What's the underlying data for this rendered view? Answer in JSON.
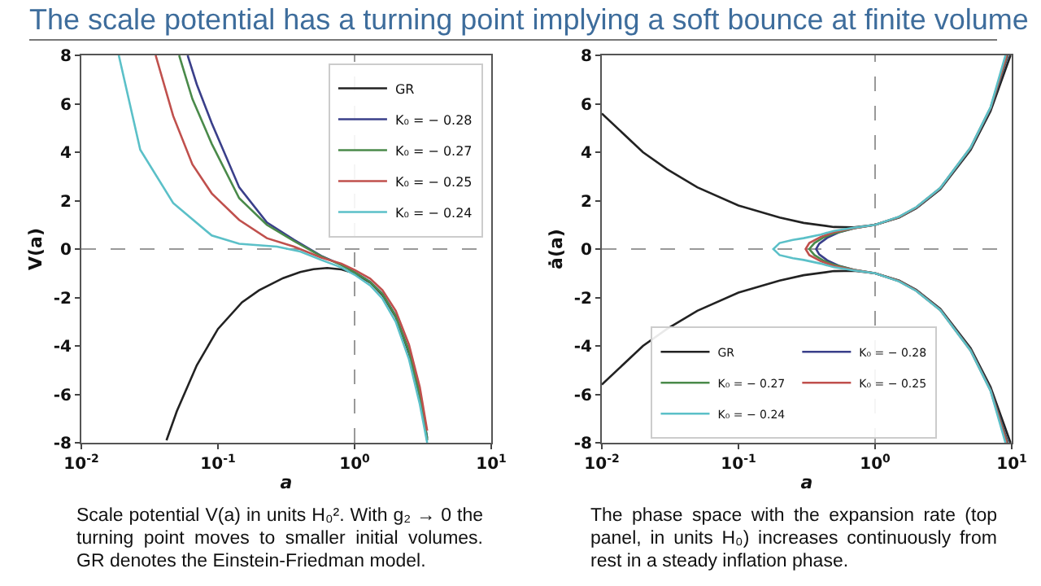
{
  "chart_data": [
    {
      "type": "line",
      "title": "The scale potential has a turning point implying a soft bounce at finite volume",
      "xlabel": "a",
      "ylabel": "V(a)",
      "log": "x",
      "xlim": [
        0.01,
        10
      ],
      "ylim": [
        -8,
        8
      ],
      "xticks": [
        {
          "value": 0.01,
          "label": "10$^{-2}$"
        },
        {
          "value": 0.1,
          "label": "10$^{-1}$"
        },
        {
          "value": 1,
          "label": "10$^{0}$"
        },
        {
          "value": 10,
          "label": "10$^{1}$"
        }
      ],
      "yticks": [
        -8,
        -6,
        -4,
        -2,
        0,
        2,
        4,
        6,
        8
      ],
      "grid": false,
      "legend": "top right",
      "ref_lines": [
        {
          "axis": "x",
          "value": 1,
          "color": "#999999",
          "line_style": "dashed"
        },
        {
          "axis": "y",
          "value": 0,
          "color": "#999999",
          "line_style": "dashed"
        }
      ],
      "annotations": [
        "Scale potential V(a) in units H₀². With g₂ → 0 the turning point moves to smaller initial volumes. GR denotes the Einstein-Friedman model."
      ],
      "series": [
        {
          "name": "GR",
          "color": "#222222",
          "x": [
            0.042,
            0.05,
            0.07,
            0.1,
            0.15,
            0.2,
            0.3,
            0.4,
            0.5,
            0.63,
            0.8,
            1,
            1.3,
            1.6,
            2,
            2.5,
            3,
            3.4
          ],
          "values": [
            -7.9,
            -6.7,
            -4.8,
            -3.3,
            -2.2,
            -1.7,
            -1.2,
            -0.95,
            -0.83,
            -0.78,
            -0.84,
            -1.0,
            -1.38,
            -1.9,
            -2.8,
            -4.3,
            -6.1,
            -7.9
          ]
        },
        {
          "name": "K₀ = − 0.28",
          "color": "#3a3f8a",
          "x": [
            0.06,
            0.07,
            0.09,
            0.143,
            0.228,
            0.36,
            0.57,
            0.8,
            1,
            1.3,
            1.6,
            2,
            2.5,
            3,
            3.4
          ],
          "values": [
            8,
            6.8,
            5.2,
            2.55,
            1.1,
            0.38,
            -0.28,
            -0.65,
            -0.95,
            -1.35,
            -1.85,
            -2.75,
            -4.2,
            -6.0,
            -7.8
          ]
        },
        {
          "name": "K₀ = − 0.27",
          "color": "#4a8a4a",
          "x": [
            0.052,
            0.065,
            0.09,
            0.143,
            0.228,
            0.36,
            0.57,
            0.8,
            1,
            1.3,
            1.6,
            2,
            2.5,
            3,
            3.4
          ],
          "values": [
            8,
            6.2,
            4.35,
            2.1,
            1.0,
            0.33,
            -0.3,
            -0.66,
            -0.96,
            -1.36,
            -1.86,
            -2.77,
            -4.22,
            -6.02,
            -7.85
          ]
        },
        {
          "name": "K₀ = − 0.25",
          "color": "#c0504d",
          "x": [
            0.035,
            0.047,
            0.065,
            0.09,
            0.143,
            0.228,
            0.36,
            0.57,
            0.8,
            1,
            1.3,
            1.6,
            2,
            2.5,
            3,
            3.4
          ],
          "values": [
            8,
            5.5,
            3.5,
            2.3,
            1.2,
            0.45,
            0.1,
            -0.35,
            -0.6,
            -0.86,
            -1.22,
            -1.7,
            -2.55,
            -3.95,
            -5.7,
            -7.5
          ]
        },
        {
          "name": "K₀ = − 0.24",
          "color": "#5bc0c8",
          "x": [
            0.0188,
            0.027,
            0.047,
            0.09,
            0.143,
            0.27,
            0.4,
            0.57,
            0.8,
            1,
            1.3,
            1.6,
            2,
            2.5,
            3,
            3.4
          ],
          "values": [
            8,
            4.1,
            1.9,
            0.56,
            0.22,
            0.1,
            -0.1,
            -0.45,
            -0.76,
            -1.06,
            -1.5,
            -2.05,
            -3.0,
            -4.55,
            -6.4,
            -8.0
          ]
        }
      ]
    },
    {
      "type": "line",
      "xlabel": "a",
      "ylabel": "ȧ(a)",
      "log": "x",
      "xlim": [
        0.01,
        10
      ],
      "ylim": [
        -8,
        8
      ],
      "xticks": [
        {
          "value": 0.01,
          "label": "10$^{-2}$"
        },
        {
          "value": 0.1,
          "label": "10$^{-1}$"
        },
        {
          "value": 1,
          "label": "10$^{0}$"
        },
        {
          "value": 10,
          "label": "10$^{1}$"
        }
      ],
      "yticks": [
        -8,
        -6,
        -4,
        -2,
        0,
        2,
        4,
        6,
        8
      ],
      "grid": false,
      "legend": "bottom",
      "ref_lines": [
        {
          "axis": "x",
          "value": 1,
          "color": "#999999",
          "line_style": "dashed"
        },
        {
          "axis": "y",
          "value": 0,
          "color": "#999999",
          "line_style": "dashed"
        }
      ],
      "annotations": [
        "The phase space with the expansion rate (top panel, in units H₀) increases continuously from rest in a steady inflation phase."
      ],
      "series": [
        {
          "name": "GR",
          "color": "#222222",
          "x": [
            0.01,
            0.02,
            0.03,
            0.05,
            0.1,
            0.2,
            0.3,
            0.5,
            0.7,
            1,
            1.5,
            2,
            3,
            5,
            7,
            9.8,
            null,
            9.8,
            7,
            5,
            3,
            2,
            1.5,
            1,
            0.7,
            0.5,
            0.3,
            0.2,
            0.1,
            0.05,
            0.03,
            0.02,
            0.01
          ],
          "values": [
            5.6,
            4.0,
            3.3,
            2.55,
            1.8,
            1.3,
            1.08,
            0.91,
            0.9,
            1.0,
            1.3,
            1.68,
            2.47,
            4.09,
            5.7,
            8.0,
            null,
            -8.0,
            -5.7,
            -4.09,
            -2.47,
            -1.68,
            -1.3,
            -1.0,
            -0.9,
            -0.91,
            -1.08,
            -1.3,
            -1.8,
            -2.55,
            -3.3,
            -4.0,
            -5.6
          ]
        },
        {
          "name": "K₀ = − 0.28",
          "color": "#3a3f8a",
          "x": [
            9.4,
            7,
            5,
            3,
            2,
            1.5,
            1,
            0.7,
            0.55,
            0.45,
            0.39,
            0.37,
            0.39,
            0.45,
            0.55,
            0.7,
            1,
            1.5,
            2,
            3,
            5,
            7,
            9.4
          ],
          "values": [
            -8.0,
            -5.8,
            -4.15,
            -2.5,
            -1.7,
            -1.32,
            -1.0,
            -0.86,
            -0.7,
            -0.48,
            -0.22,
            0,
            0.22,
            0.48,
            0.7,
            0.86,
            1.0,
            1.32,
            1.7,
            2.5,
            4.15,
            5.8,
            8.0
          ]
        },
        {
          "name": "K₀ = − 0.27",
          "color": "#4a8a4a",
          "x": [
            9.3,
            7,
            5,
            3,
            2,
            1.5,
            1,
            0.7,
            0.5,
            0.42,
            0.36,
            0.33,
            0.36,
            0.42,
            0.5,
            0.7,
            1,
            1.5,
            2,
            3,
            5,
            7,
            9.3
          ],
          "values": [
            -8.0,
            -5.82,
            -4.17,
            -2.51,
            -1.71,
            -1.32,
            -1.0,
            -0.86,
            -0.65,
            -0.48,
            -0.25,
            0,
            0.25,
            0.48,
            0.65,
            0.86,
            1.0,
            1.32,
            1.71,
            2.51,
            4.17,
            5.82,
            8.0
          ]
        },
        {
          "name": "K₀ = − 0.25",
          "color": "#c0504d",
          "x": [
            9.2,
            7,
            5,
            3,
            2,
            1.5,
            1,
            0.7,
            0.5,
            0.4,
            0.33,
            0.31,
            0.33,
            0.4,
            0.5,
            0.7,
            1,
            1.5,
            2,
            3,
            5,
            7,
            9.2
          ],
          "values": [
            -8.0,
            -5.84,
            -4.19,
            -2.52,
            -1.72,
            -1.33,
            -1.0,
            -0.87,
            -0.7,
            -0.5,
            -0.25,
            0,
            0.25,
            0.5,
            0.7,
            0.87,
            1.0,
            1.33,
            1.72,
            2.52,
            4.19,
            5.84,
            8.0
          ]
        },
        {
          "name": "K₀ = − 0.24",
          "color": "#5bc0c8",
          "x": [
            9.0,
            7,
            5,
            3,
            2,
            1.5,
            1,
            0.7,
            0.5,
            0.4,
            0.3,
            0.25,
            0.2,
            0.18,
            0.2,
            0.25,
            0.3,
            0.4,
            0.5,
            0.7,
            1,
            1.5,
            2,
            3,
            5,
            7,
            9.0
          ],
          "values": [
            -8.0,
            -5.86,
            -4.2,
            -2.53,
            -1.73,
            -1.34,
            -1.0,
            -0.88,
            -0.75,
            -0.6,
            -0.45,
            -0.38,
            -0.25,
            0,
            0.25,
            0.38,
            0.45,
            0.6,
            0.75,
            0.88,
            1.0,
            1.34,
            1.73,
            2.53,
            4.2,
            5.86,
            8.0
          ]
        }
      ]
    }
  ]
}
